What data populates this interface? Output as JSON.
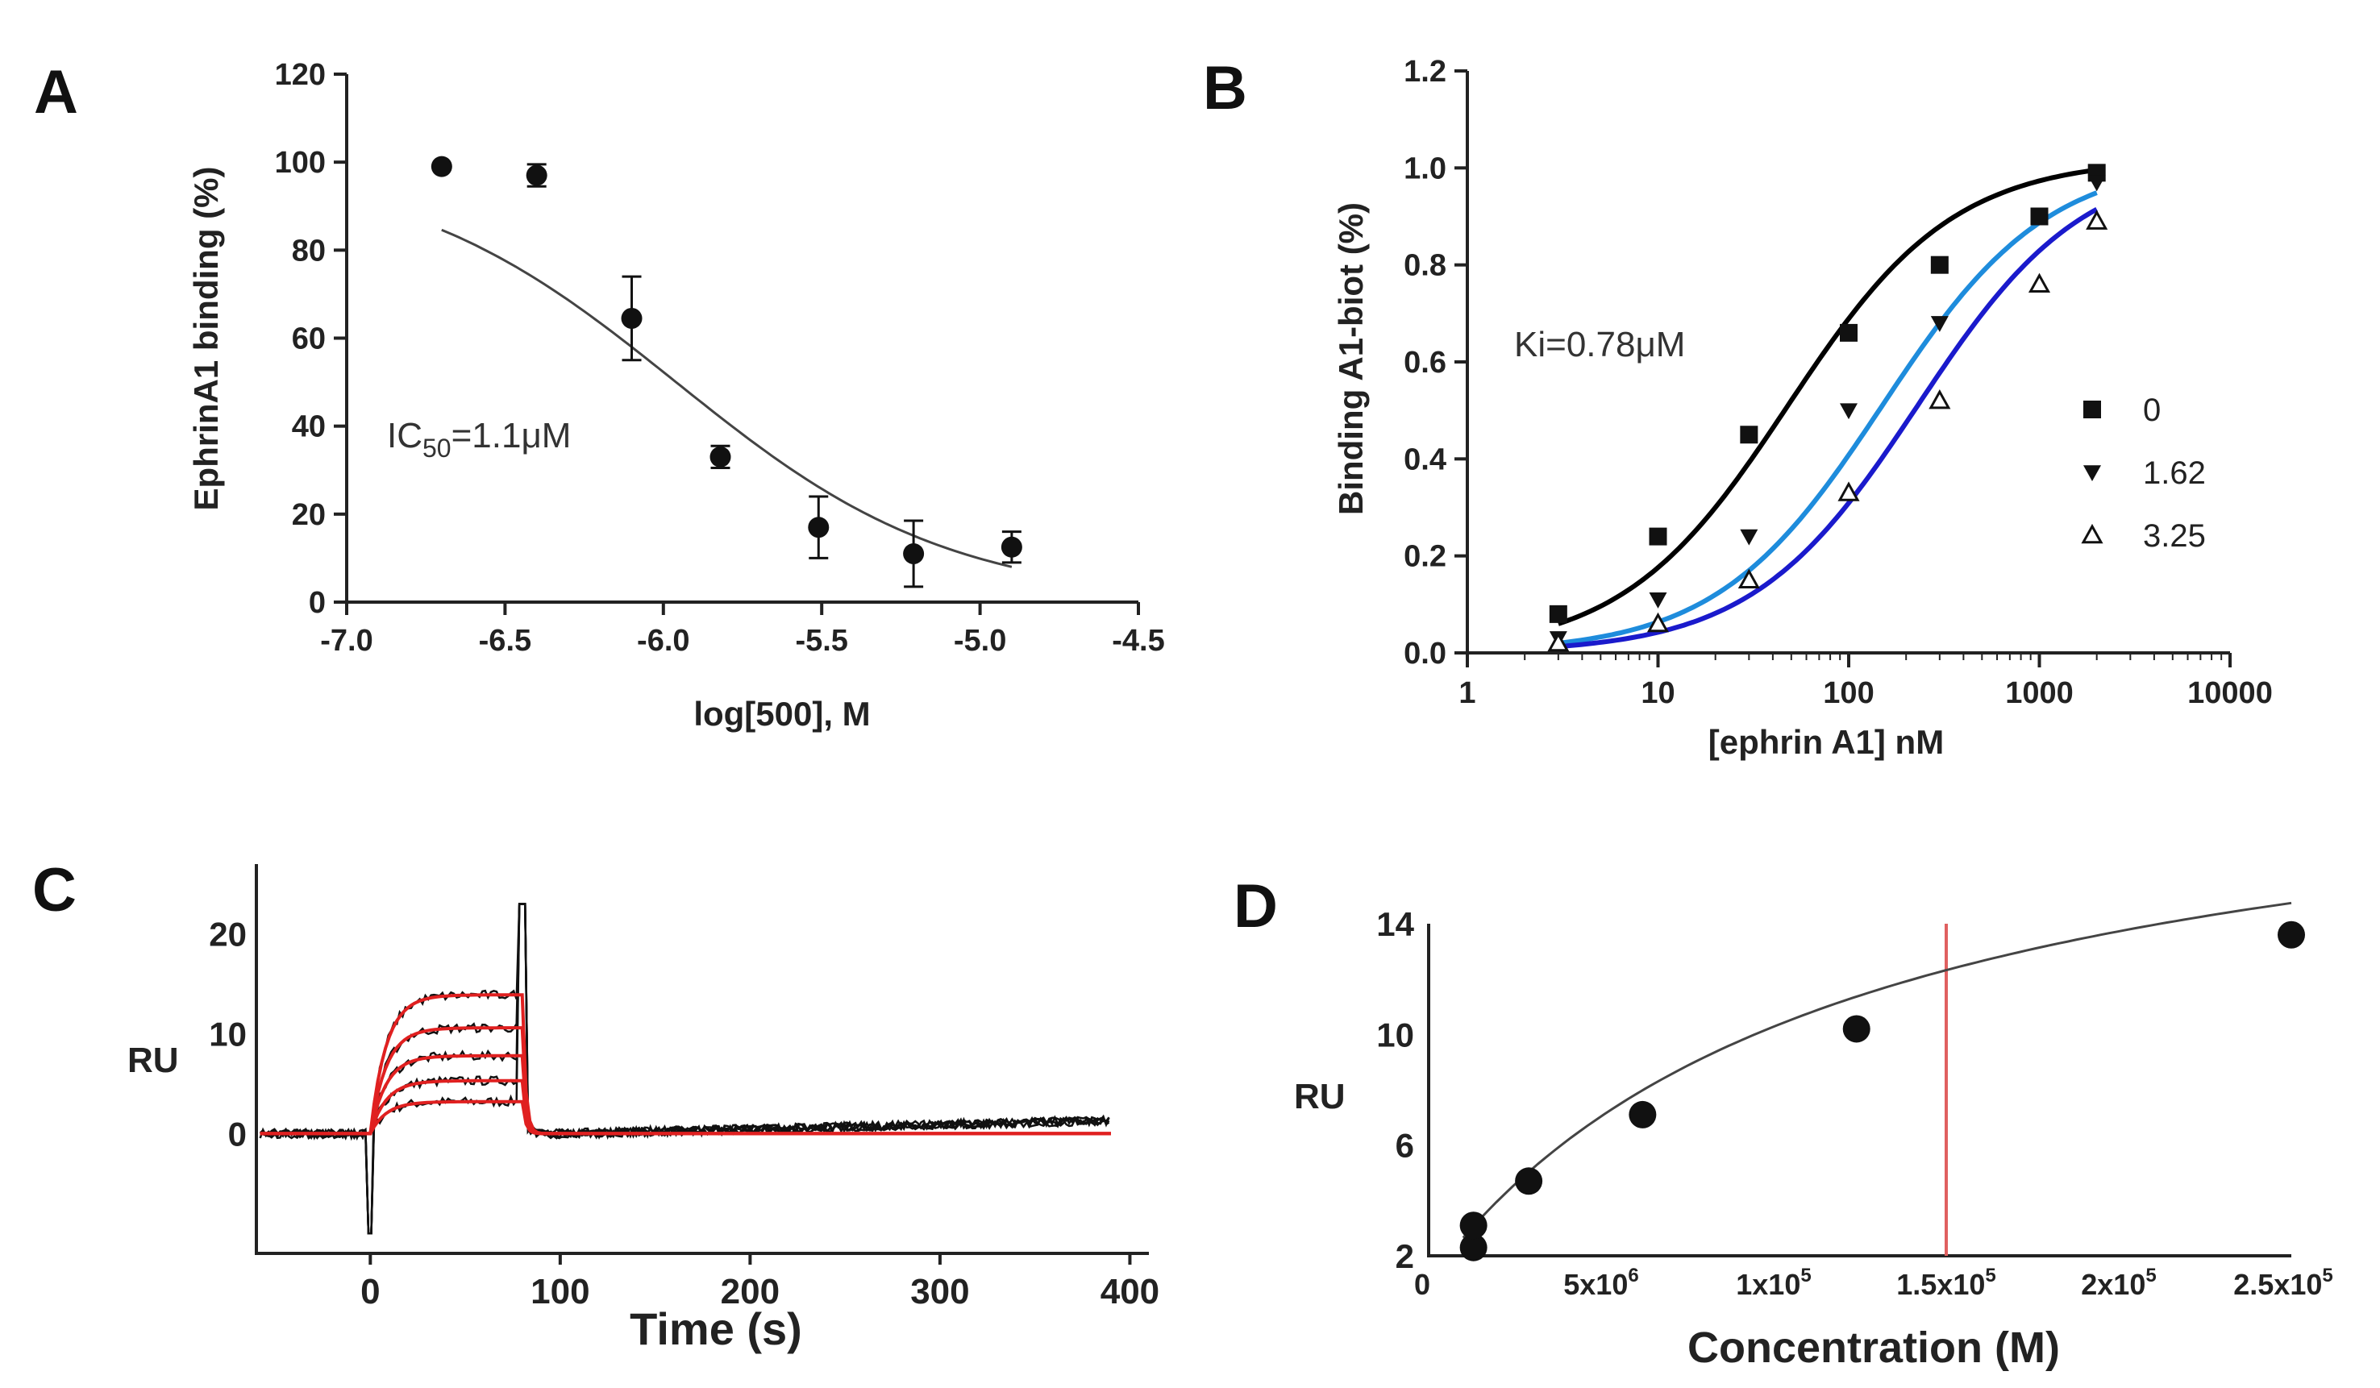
{
  "chart_data": [
    {
      "panel": "A",
      "type": "scatter",
      "title": "",
      "xlabel": "log[500], M",
      "ylabel": "EphrinA1 binding (%)",
      "xlim": [
        -7.0,
        -4.5
      ],
      "ylim": [
        0,
        120
      ],
      "xticks": [
        -7.0,
        -6.5,
        -6.0,
        -5.5,
        -5.0,
        -4.5
      ],
      "xtick_labels": [
        "-7.0",
        "-6.5",
        "-6.0",
        "-5.5",
        "-5.0",
        "-4.5"
      ],
      "yticks": [
        0,
        20,
        40,
        60,
        80,
        100,
        120
      ],
      "ytick_labels": [
        "0",
        "20",
        "40",
        "60",
        "80",
        "100",
        "120"
      ],
      "x": [
        -6.7,
        -6.4,
        -6.1,
        -5.82,
        -5.51,
        -5.21,
        -4.9
      ],
      "y": [
        99,
        97,
        64.5,
        33,
        17,
        11,
        12.5
      ],
      "yerr": [
        0,
        2.5,
        9.5,
        2.5,
        7,
        7.5,
        3.5
      ],
      "fit": {
        "model": "log-inhibitor",
        "top": 100,
        "bottom": 0,
        "logIC50": -5.96,
        "hill": 1.0,
        "range": [
          -6.7,
          -4.9
        ]
      },
      "annotation": {
        "prefix": "IC",
        "subscript": "50",
        "suffix": "=1.1μM"
      },
      "colors": {
        "points": "#111111",
        "fit": "#444444"
      }
    },
    {
      "panel": "B",
      "type": "scatter",
      "title": "",
      "xlabel": "[ephrin A1] nM",
      "ylabel": "Binding A1-biot (%)",
      "xscale": "log",
      "xlim": [
        1,
        10000
      ],
      "ylim": [
        0,
        1.2
      ],
      "xticks": [
        1,
        10,
        100,
        1000,
        10000
      ],
      "xtick_labels": [
        "1",
        "10",
        "100",
        "1000",
        "10000"
      ],
      "yticks": [
        0,
        0.2,
        0.4,
        0.6,
        0.8,
        1.0,
        1.2
      ],
      "ytick_labels": [
        "0.0",
        "0.2",
        "0.4",
        "0.6",
        "0.8",
        "1.0",
        "1.2"
      ],
      "annotation": "Ki=0.78μM",
      "series": [
        {
          "name": "0",
          "marker": "square",
          "color": "#000000",
          "x": [
            3,
            10,
            30,
            100,
            300,
            1000,
            2000
          ],
          "y": [
            0.08,
            0.24,
            0.45,
            0.66,
            0.8,
            0.9,
            0.99
          ],
          "fit": {
            "ec50": 48,
            "top": 1.02
          }
        },
        {
          "name": "1.62",
          "marker": "triangle-down",
          "color": "#1e8cdc",
          "x": [
            3,
            10,
            30,
            100,
            300,
            1000,
            2000
          ],
          "y": [
            0.03,
            0.11,
            0.24,
            0.5,
            0.68,
            0.9,
            0.97
          ],
          "fit": {
            "ec50": 150,
            "top": 1.02
          }
        },
        {
          "name": "3.25",
          "marker": "triangle-open",
          "color": "#1a1acc",
          "x": [
            3,
            10,
            30,
            100,
            300,
            1000,
            2000
          ],
          "y": [
            0.02,
            0.06,
            0.15,
            0.33,
            0.52,
            0.76,
            0.89
          ],
          "fit": {
            "ec50": 230,
            "top": 1.02
          }
        }
      ],
      "legend": "right"
    },
    {
      "panel": "C",
      "type": "line",
      "title": "",
      "xlabel": "Time (s)",
      "ylabel": "RU",
      "xlim": [
        -60,
        410
      ],
      "ylim": [
        -12,
        27
      ],
      "xticks": [
        0,
        100,
        200,
        300,
        400
      ],
      "xtick_labels": [
        "0",
        "100",
        "200",
        "300",
        "400"
      ],
      "yticks": [
        0,
        10,
        20
      ],
      "ytick_labels": [
        "0",
        "10",
        "20"
      ],
      "injection": {
        "start": 0,
        "end": 80
      },
      "plateaus": [
        3.2,
        5.3,
        7.8,
        10.6,
        13.9
      ],
      "colors": {
        "fit": "#e02020",
        "data": "#111111"
      }
    },
    {
      "panel": "D",
      "type": "scatter",
      "title": "",
      "xlabel": "Concentration (M)",
      "ylabel": "RU",
      "xlim": [
        0,
        2.5
      ],
      "ylim": [
        2,
        14
      ],
      "xticks": [
        0,
        0.5,
        1.0,
        1.5,
        2.0,
        2.5
      ],
      "xtick_labels": [
        {
          "base": "0",
          "sup": ""
        },
        {
          "base": "5x10",
          "sup": "6"
        },
        {
          "base": "1x10",
          "sup": "5"
        },
        {
          "base": "1.5x10",
          "sup": "5"
        },
        {
          "base": "2x10",
          "sup": "5"
        },
        {
          "base": "2.5x10",
          "sup": "5"
        }
      ],
      "yticks": [
        2,
        6,
        10,
        14
      ],
      "ytick_labels": [
        "2",
        "6",
        "10",
        "14"
      ],
      "x": [
        0.13,
        0.13,
        0.29,
        0.62,
        1.24,
        2.5
      ],
      "y": [
        2.3,
        3.1,
        4.7,
        7.1,
        10.2,
        13.6
      ],
      "fit": {
        "model": "langmuir",
        "rmax": 20.2,
        "kd": 1.2,
        "range": [
          0.1,
          2.5
        ]
      },
      "reference_line_x": 1.5,
      "colors": {
        "points": "#111111",
        "fit": "#444444",
        "reference": "#e06060"
      }
    }
  ]
}
